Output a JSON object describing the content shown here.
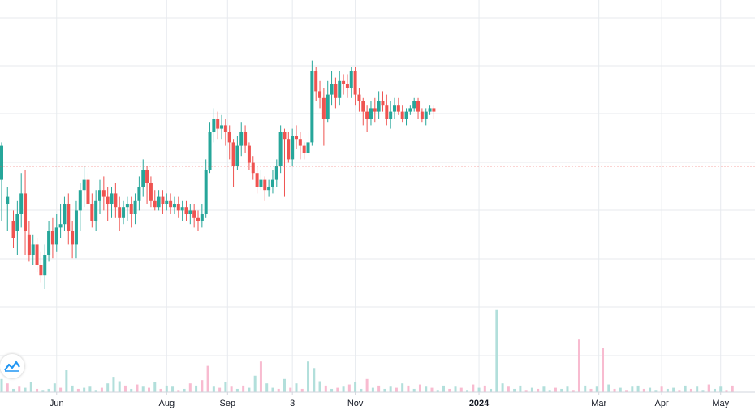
{
  "chart_data": {
    "type": "candlestick",
    "title": "",
    "xlabel": "",
    "ylabel": "",
    "x_ticks": [
      {
        "label": "Jun",
        "day": 28,
        "bold": false
      },
      {
        "label": "Aug",
        "day": 84,
        "bold": false
      },
      {
        "label": "Sep",
        "day": 115,
        "bold": false
      },
      {
        "label": "3",
        "day": 148,
        "bold": false
      },
      {
        "label": "Nov",
        "day": 180,
        "bold": false
      },
      {
        "label": "2024",
        "day": 243,
        "bold": true
      },
      {
        "label": "Mar",
        "day": 304,
        "bold": false
      },
      {
        "label": "Apr",
        "day": 336,
        "bold": false
      },
      {
        "label": "May",
        "day": 366,
        "bold": false
      }
    ],
    "price_range": [
      0,
      100
    ],
    "reference_price": 56,
    "candles_note": "values in normalized price units 0-100 (no price axis printed); day = trading-day index",
    "candles": [
      [
        0,
        52,
        62,
        63,
        40
      ],
      [
        3,
        45,
        47,
        50,
        37
      ],
      [
        6,
        40,
        35,
        43,
        32
      ],
      [
        8,
        37,
        42,
        46,
        30
      ],
      [
        10,
        42,
        48,
        54,
        38
      ],
      [
        12,
        48,
        37,
        55,
        30
      ],
      [
        14,
        36,
        30,
        40,
        28
      ],
      [
        16,
        30,
        33,
        36,
        27
      ],
      [
        18,
        33,
        27,
        35,
        25
      ],
      [
        20,
        27,
        24,
        31,
        22
      ],
      [
        22,
        24,
        30,
        33,
        20
      ],
      [
        24,
        30,
        37,
        40,
        28
      ],
      [
        26,
        37,
        33,
        41,
        29
      ],
      [
        28,
        33,
        38,
        42,
        31
      ],
      [
        30,
        38,
        39,
        45,
        35
      ],
      [
        32,
        39,
        45,
        47,
        37
      ],
      [
        34,
        45,
        37,
        48,
        33
      ],
      [
        36,
        37,
        33,
        40,
        29
      ],
      [
        38,
        33,
        43,
        46,
        29
      ],
      [
        40,
        43,
        49,
        51,
        37
      ],
      [
        42,
        49,
        52,
        56,
        44
      ],
      [
        44,
        52,
        45,
        54,
        43
      ],
      [
        46,
        45,
        40,
        48,
        38
      ],
      [
        48,
        40,
        46,
        49,
        37
      ],
      [
        50,
        46,
        49,
        52,
        42
      ],
      [
        52,
        49,
        47,
        53,
        43
      ],
      [
        54,
        47,
        45,
        50,
        40
      ],
      [
        56,
        45,
        48,
        50,
        41
      ],
      [
        58,
        48,
        44,
        51,
        41
      ],
      [
        60,
        44,
        41,
        47,
        37
      ],
      [
        62,
        41,
        44,
        46,
        39
      ],
      [
        64,
        44,
        45,
        47,
        40
      ],
      [
        66,
        45,
        42,
        47,
        38
      ],
      [
        68,
        42,
        46,
        48,
        39
      ],
      [
        70,
        46,
        50,
        53,
        43
      ],
      [
        72,
        50,
        55,
        58,
        47
      ],
      [
        74,
        55,
        51,
        56,
        45
      ],
      [
        76,
        51,
        46,
        53,
        44
      ],
      [
        78,
        46,
        44,
        49,
        43
      ],
      [
        80,
        44,
        47,
        49,
        43
      ],
      [
        82,
        47,
        45,
        49,
        42
      ],
      [
        84,
        45,
        46,
        48,
        43
      ],
      [
        86,
        46,
        44,
        48,
        42
      ],
      [
        88,
        44,
        45,
        47,
        42
      ],
      [
        90,
        45,
        43,
        47,
        41
      ],
      [
        92,
        43,
        44,
        46,
        40
      ],
      [
        94,
        44,
        42,
        46,
        40
      ],
      [
        96,
        42,
        43,
        45,
        39
      ],
      [
        98,
        43,
        41,
        45,
        38
      ],
      [
        100,
        41,
        40,
        43,
        37
      ],
      [
        102,
        40,
        42,
        45,
        38
      ],
      [
        104,
        42,
        55,
        58,
        41
      ],
      [
        106,
        55,
        66,
        69,
        54
      ],
      [
        108,
        66,
        70,
        73,
        63
      ],
      [
        110,
        70,
        67,
        72,
        64
      ],
      [
        112,
        67,
        68,
        71,
        64
      ],
      [
        114,
        68,
        66,
        70,
        62
      ],
      [
        116,
        66,
        63,
        68,
        58
      ],
      [
        118,
        63,
        56,
        64,
        50
      ],
      [
        120,
        56,
        62,
        65,
        55
      ],
      [
        122,
        62,
        66,
        69,
        59
      ],
      [
        124,
        66,
        62,
        68,
        60
      ],
      [
        126,
        62,
        57,
        63,
        55
      ],
      [
        128,
        57,
        54,
        59,
        52
      ],
      [
        130,
        54,
        50,
        56,
        48
      ],
      [
        132,
        50,
        52,
        55,
        49
      ],
      [
        134,
        52,
        49,
        53,
        46
      ],
      [
        136,
        49,
        50,
        52,
        47
      ],
      [
        138,
        50,
        52,
        55,
        48
      ],
      [
        140,
        52,
        56,
        58,
        50
      ],
      [
        142,
        56,
        66,
        68,
        54
      ],
      [
        144,
        66,
        64,
        67,
        47
      ],
      [
        146,
        64,
        58,
        66,
        57
      ],
      [
        148,
        58,
        65,
        67,
        56
      ],
      [
        150,
        65,
        64,
        68,
        61
      ],
      [
        152,
        64,
        62,
        66,
        58
      ],
      [
        154,
        62,
        60,
        63,
        58
      ],
      [
        156,
        60,
        63,
        66,
        59
      ],
      [
        158,
        63,
        84,
        87,
        62
      ],
      [
        160,
        84,
        78,
        85,
        75
      ],
      [
        162,
        78,
        76,
        81,
        73
      ],
      [
        164,
        76,
        70,
        79,
        62
      ],
      [
        166,
        70,
        77,
        81,
        69
      ],
      [
        168,
        77,
        80,
        84,
        74
      ],
      [
        170,
        80,
        76,
        82,
        73
      ],
      [
        172,
        76,
        81,
        84,
        74
      ],
      [
        174,
        81,
        80,
        83,
        77
      ],
      [
        176,
        80,
        79,
        83,
        76
      ],
      [
        178,
        79,
        84,
        85,
        76
      ],
      [
        180,
        84,
        77,
        85,
        74
      ],
      [
        182,
        77,
        75,
        79,
        72
      ],
      [
        184,
        75,
        72,
        76,
        68
      ],
      [
        186,
        72,
        70,
        74,
        66
      ],
      [
        188,
        70,
        73,
        75,
        68
      ],
      [
        190,
        73,
        72,
        76,
        69
      ],
      [
        192,
        72,
        75,
        78,
        70
      ],
      [
        194,
        75,
        74,
        78,
        72
      ],
      [
        196,
        74,
        70,
        77,
        68
      ],
      [
        198,
        70,
        72,
        75,
        67
      ],
      [
        200,
        72,
        74,
        76,
        70
      ],
      [
        202,
        74,
        72,
        76,
        71
      ],
      [
        204,
        72,
        70,
        74,
        69
      ],
      [
        206,
        70,
        72,
        73,
        68
      ],
      [
        208,
        72,
        73,
        74,
        71
      ],
      [
        210,
        73,
        75,
        76,
        72
      ],
      [
        212,
        75,
        72,
        76,
        70
      ],
      [
        214,
        72,
        70,
        73,
        69
      ],
      [
        216,
        70,
        72,
        73,
        68
      ],
      [
        218,
        72,
        73,
        74,
        71
      ],
      [
        220,
        73,
        72,
        74,
        70
      ]
    ],
    "volumes_note": "relative volume 0-100 per day index; up=true green, up=false red",
    "volumes": [
      [
        0,
        12,
        true
      ],
      [
        3,
        8,
        false
      ],
      [
        6,
        3,
        true
      ],
      [
        9,
        5,
        false
      ],
      [
        12,
        4,
        true
      ],
      [
        15,
        9,
        true
      ],
      [
        18,
        3,
        false
      ],
      [
        21,
        2,
        true
      ],
      [
        24,
        3,
        true
      ],
      [
        27,
        8,
        true
      ],
      [
        30,
        4,
        false
      ],
      [
        33,
        20,
        true
      ],
      [
        36,
        6,
        true
      ],
      [
        39,
        3,
        false
      ],
      [
        42,
        4,
        true
      ],
      [
        45,
        5,
        true
      ],
      [
        48,
        2,
        true
      ],
      [
        51,
        4,
        false
      ],
      [
        54,
        8,
        true
      ],
      [
        57,
        14,
        true
      ],
      [
        60,
        10,
        true
      ],
      [
        63,
        6,
        false
      ],
      [
        66,
        3,
        true
      ],
      [
        69,
        7,
        false
      ],
      [
        72,
        5,
        true
      ],
      [
        75,
        4,
        false
      ],
      [
        78,
        9,
        true
      ],
      [
        81,
        3,
        false
      ],
      [
        84,
        6,
        true
      ],
      [
        87,
        5,
        true
      ],
      [
        90,
        2,
        false
      ],
      [
        93,
        3,
        true
      ],
      [
        96,
        8,
        false
      ],
      [
        99,
        6,
        true
      ],
      [
        102,
        11,
        false
      ],
      [
        105,
        24,
        false
      ],
      [
        108,
        5,
        true
      ],
      [
        111,
        4,
        false
      ],
      [
        114,
        9,
        true
      ],
      [
        117,
        5,
        false
      ],
      [
        120,
        3,
        true
      ],
      [
        123,
        6,
        false
      ],
      [
        126,
        4,
        true
      ],
      [
        129,
        15,
        true
      ],
      [
        132,
        28,
        false
      ],
      [
        135,
        8,
        true
      ],
      [
        138,
        4,
        true
      ],
      [
        141,
        3,
        false
      ],
      [
        144,
        12,
        true
      ],
      [
        147,
        4,
        false
      ],
      [
        150,
        8,
        true
      ],
      [
        153,
        3,
        false
      ],
      [
        156,
        28,
        true
      ],
      [
        159,
        22,
        true
      ],
      [
        162,
        10,
        true
      ],
      [
        165,
        6,
        false
      ],
      [
        168,
        3,
        true
      ],
      [
        171,
        4,
        false
      ],
      [
        174,
        5,
        true
      ],
      [
        177,
        7,
        false
      ],
      [
        180,
        9,
        true
      ],
      [
        183,
        3,
        true
      ],
      [
        186,
        12,
        false
      ],
      [
        189,
        4,
        true
      ],
      [
        192,
        6,
        false
      ],
      [
        195,
        3,
        true
      ],
      [
        198,
        5,
        true
      ],
      [
        201,
        4,
        false
      ],
      [
        204,
        8,
        true
      ],
      [
        207,
        6,
        false
      ],
      [
        210,
        3,
        true
      ],
      [
        213,
        7,
        false
      ],
      [
        216,
        5,
        true
      ],
      [
        219,
        4,
        false
      ],
      [
        222,
        2,
        true
      ],
      [
        225,
        6,
        true
      ],
      [
        228,
        3,
        false
      ],
      [
        231,
        5,
        true
      ],
      [
        234,
        4,
        false
      ],
      [
        237,
        2,
        true
      ],
      [
        240,
        7,
        false
      ],
      [
        243,
        4,
        true
      ],
      [
        246,
        6,
        false
      ],
      [
        249,
        3,
        true
      ],
      [
        252,
        75,
        true
      ],
      [
        255,
        8,
        true
      ],
      [
        258,
        5,
        false
      ],
      [
        261,
        3,
        true
      ],
      [
        264,
        6,
        true
      ],
      [
        267,
        2,
        false
      ],
      [
        270,
        4,
        true
      ],
      [
        273,
        3,
        false
      ],
      [
        276,
        5,
        true
      ],
      [
        279,
        2,
        true
      ],
      [
        282,
        4,
        false
      ],
      [
        285,
        3,
        true
      ],
      [
        288,
        5,
        true
      ],
      [
        291,
        2,
        false
      ],
      [
        294,
        48,
        false
      ],
      [
        297,
        6,
        true
      ],
      [
        300,
        3,
        false
      ],
      [
        303,
        5,
        true
      ],
      [
        306,
        40,
        false
      ],
      [
        309,
        7,
        true
      ],
      [
        312,
        3,
        false
      ],
      [
        315,
        4,
        true
      ],
      [
        318,
        2,
        false
      ],
      [
        321,
        5,
        true
      ],
      [
        324,
        6,
        true
      ],
      [
        327,
        3,
        false
      ],
      [
        330,
        4,
        true
      ],
      [
        333,
        2,
        true
      ],
      [
        336,
        5,
        false
      ],
      [
        339,
        3,
        true
      ],
      [
        342,
        4,
        true
      ],
      [
        345,
        2,
        false
      ],
      [
        348,
        6,
        true
      ],
      [
        351,
        3,
        false
      ],
      [
        354,
        5,
        true
      ],
      [
        357,
        2,
        true
      ],
      [
        360,
        7,
        false
      ],
      [
        363,
        3,
        true
      ],
      [
        366,
        5,
        true
      ],
      [
        369,
        2,
        false
      ],
      [
        372,
        6,
        false
      ]
    ],
    "colors": {
      "up": "#26a69a",
      "down": "#ef5350",
      "up_volume": "#b2dfdb",
      "down_volume": "#f8bbd0",
      "grid": "#e7eaee",
      "reference": "#ef5350",
      "axis": "#d1d4dc"
    },
    "grid": true
  },
  "logo": {
    "icon": "tradingview-logo-icon"
  }
}
